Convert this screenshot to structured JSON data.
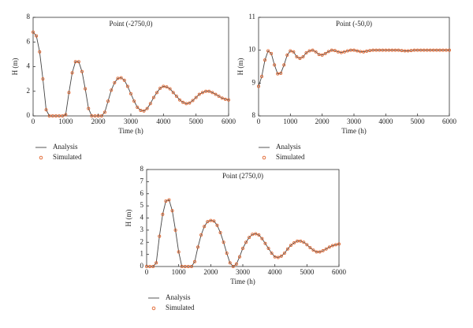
{
  "chart_data": [
    {
      "type": "line",
      "title": "Point (-2750,0)",
      "xlabel": "Time (h)",
      "ylabel": "H (m)",
      "xlim": [
        0,
        6000
      ],
      "xticks": [
        0,
        1000,
        2000,
        3000,
        4000,
        5000,
        6000
      ],
      "ylim": [
        0,
        8
      ],
      "yticks": [
        0,
        2,
        4,
        6,
        8
      ],
      "x": [
        0,
        100,
        200,
        300,
        400,
        500,
        600,
        700,
        800,
        900,
        1000,
        1100,
        1200,
        1300,
        1400,
        1500,
        1600,
        1700,
        1800,
        1900,
        2000,
        2100,
        2200,
        2300,
        2400,
        2500,
        2600,
        2700,
        2800,
        2900,
        3000,
        3100,
        3200,
        3300,
        3400,
        3500,
        3600,
        3700,
        3800,
        3900,
        4000,
        4100,
        4200,
        4300,
        4400,
        4500,
        4600,
        4700,
        4800,
        4900,
        5000,
        5100,
        5200,
        5300,
        5400,
        5500,
        5600,
        5700,
        5800,
        5900,
        6000
      ],
      "series": [
        {
          "name": "Analysis",
          "color": "#444444",
          "style": "line",
          "values": [
            6.8,
            6.5,
            5.2,
            3.0,
            0.5,
            0,
            0,
            0,
            0,
            0,
            0.1,
            1.9,
            3.5,
            4.4,
            4.4,
            3.6,
            2.2,
            0.6,
            0,
            0,
            0,
            0,
            0.3,
            1.2,
            2.1,
            2.7,
            3.05,
            3.1,
            2.9,
            2.4,
            1.8,
            1.2,
            0.7,
            0.45,
            0.4,
            0.6,
            1.0,
            1.5,
            1.9,
            2.25,
            2.4,
            2.35,
            2.2,
            1.9,
            1.6,
            1.3,
            1.1,
            1.0,
            1.05,
            1.25,
            1.5,
            1.75,
            1.9,
            2.0,
            2.0,
            1.9,
            1.75,
            1.6,
            1.45,
            1.35,
            1.3
          ]
        },
        {
          "name": "Simulated",
          "color": "#e0622a",
          "style": "markers",
          "values": [
            6.8,
            6.5,
            5.2,
            3.0,
            0.5,
            0,
            0,
            0,
            0,
            0,
            0.1,
            1.9,
            3.5,
            4.4,
            4.4,
            3.6,
            2.2,
            0.6,
            0,
            0,
            0,
            0,
            0.3,
            1.2,
            2.1,
            2.7,
            3.05,
            3.1,
            2.9,
            2.4,
            1.8,
            1.2,
            0.7,
            0.45,
            0.4,
            0.6,
            1.0,
            1.5,
            1.9,
            2.25,
            2.4,
            2.35,
            2.2,
            1.9,
            1.6,
            1.3,
            1.1,
            1.0,
            1.05,
            1.25,
            1.5,
            1.75,
            1.9,
            2.0,
            2.0,
            1.9,
            1.75,
            1.6,
            1.45,
            1.35,
            1.3
          ]
        }
      ]
    },
    {
      "type": "line",
      "title": "Point (-50,0)",
      "xlabel": "Time (h)",
      "ylabel": "H (m)",
      "xlim": [
        0,
        6000
      ],
      "xticks": [
        0,
        1000,
        2000,
        3000,
        4000,
        5000,
        6000
      ],
      "ylim": [
        8,
        11
      ],
      "yticks": [
        8,
        9,
        10,
        11
      ],
      "x": [
        0,
        100,
        200,
        300,
        400,
        500,
        600,
        700,
        800,
        900,
        1000,
        1100,
        1200,
        1300,
        1400,
        1500,
        1600,
        1700,
        1800,
        1900,
        2000,
        2100,
        2200,
        2300,
        2400,
        2500,
        2600,
        2700,
        2800,
        2900,
        3000,
        3100,
        3200,
        3300,
        3400,
        3500,
        3600,
        3700,
        3800,
        3900,
        4000,
        4100,
        4200,
        4300,
        4400,
        4500,
        4600,
        4700,
        4800,
        4900,
        5000,
        5100,
        5200,
        5300,
        5400,
        5500,
        5600,
        5700,
        5800,
        5900,
        6000
      ],
      "series": [
        {
          "name": "Analysis",
          "color": "#444444",
          "style": "line",
          "values": [
            8.9,
            9.2,
            9.7,
            9.98,
            9.9,
            9.55,
            9.28,
            9.3,
            9.55,
            9.85,
            9.98,
            9.95,
            9.8,
            9.75,
            9.8,
            9.92,
            9.98,
            10.0,
            9.95,
            9.87,
            9.85,
            9.9,
            9.96,
            10.0,
            9.99,
            9.95,
            9.93,
            9.95,
            9.98,
            10.0,
            10.0,
            9.98,
            9.96,
            9.95,
            9.97,
            9.99,
            10.0,
            10.0,
            10.0,
            10.0,
            10.0,
            10.0,
            10.0,
            10.0,
            10.0,
            9.99,
            9.98,
            9.98,
            9.99,
            10.0,
            10.0,
            10.0,
            10.0,
            10.0,
            10.0,
            10.0,
            10.0,
            10.0,
            10.0,
            10.0,
            10.0
          ]
        },
        {
          "name": "Simulated",
          "color": "#e0622a",
          "style": "markers",
          "values": [
            8.9,
            9.2,
            9.7,
            9.98,
            9.9,
            9.55,
            9.28,
            9.3,
            9.55,
            9.85,
            9.98,
            9.95,
            9.8,
            9.75,
            9.8,
            9.92,
            9.98,
            10.0,
            9.95,
            9.87,
            9.85,
            9.9,
            9.96,
            10.0,
            9.99,
            9.95,
            9.93,
            9.95,
            9.98,
            10.0,
            10.0,
            9.98,
            9.96,
            9.95,
            9.97,
            9.99,
            10.0,
            10.0,
            10.0,
            10.0,
            10.0,
            10.0,
            10.0,
            10.0,
            10.0,
            9.99,
            9.98,
            9.98,
            9.99,
            10.0,
            10.0,
            10.0,
            10.0,
            10.0,
            10.0,
            10.0,
            10.0,
            10.0,
            10.0,
            10.0,
            10.0
          ]
        }
      ]
    },
    {
      "type": "line",
      "title": "Point (2750,0)",
      "xlabel": "Time (h)",
      "ylabel": "H (m)",
      "xlim": [
        0,
        6000
      ],
      "xticks": [
        0,
        1000,
        2000,
        3000,
        4000,
        5000,
        6000
      ],
      "ylim": [
        0,
        8
      ],
      "yticks": [
        0,
        1,
        2,
        3,
        4,
        5,
        6,
        7,
        8
      ],
      "x": [
        0,
        100,
        200,
        300,
        400,
        500,
        600,
        700,
        800,
        900,
        1000,
        1100,
        1200,
        1300,
        1400,
        1500,
        1600,
        1700,
        1800,
        1900,
        2000,
        2100,
        2200,
        2300,
        2400,
        2500,
        2600,
        2700,
        2800,
        2900,
        3000,
        3100,
        3200,
        3300,
        3400,
        3500,
        3600,
        3700,
        3800,
        3900,
        4000,
        4100,
        4200,
        4300,
        4400,
        4500,
        4600,
        4700,
        4800,
        4900,
        5000,
        5100,
        5200,
        5300,
        5400,
        5500,
        5600,
        5700,
        5800,
        5900,
        6000
      ],
      "series": [
        {
          "name": "Analysis",
          "color": "#444444",
          "style": "line",
          "values": [
            0,
            0,
            0,
            0.3,
            2.5,
            4.3,
            5.4,
            5.5,
            4.6,
            3.0,
            1.2,
            0,
            0,
            0,
            0,
            0.4,
            1.6,
            2.6,
            3.3,
            3.7,
            3.8,
            3.75,
            3.4,
            2.8,
            2.0,
            1.1,
            0.3,
            0,
            0.2,
            0.8,
            1.5,
            2.0,
            2.4,
            2.65,
            2.7,
            2.6,
            2.3,
            1.9,
            1.5,
            1.1,
            0.8,
            0.75,
            0.85,
            1.1,
            1.45,
            1.75,
            1.95,
            2.1,
            2.1,
            2.0,
            1.8,
            1.55,
            1.35,
            1.2,
            1.2,
            1.3,
            1.45,
            1.6,
            1.72,
            1.8,
            1.85
          ]
        },
        {
          "name": "Simulated",
          "color": "#e0622a",
          "style": "markers",
          "values": [
            0,
            0,
            0,
            0.3,
            2.5,
            4.3,
            5.4,
            5.5,
            4.6,
            3.0,
            1.2,
            0,
            0,
            0,
            0,
            0.4,
            1.6,
            2.6,
            3.3,
            3.7,
            3.8,
            3.75,
            3.4,
            2.8,
            2.0,
            1.1,
            0.3,
            0,
            0.2,
            0.8,
            1.5,
            2.0,
            2.4,
            2.65,
            2.7,
            2.6,
            2.3,
            1.9,
            1.5,
            1.1,
            0.8,
            0.75,
            0.85,
            1.1,
            1.45,
            1.75,
            1.95,
            2.1,
            2.1,
            2.0,
            1.8,
            1.55,
            1.35,
            1.2,
            1.2,
            1.3,
            1.45,
            1.6,
            1.72,
            1.8,
            1.85
          ]
        }
      ]
    }
  ]
}
